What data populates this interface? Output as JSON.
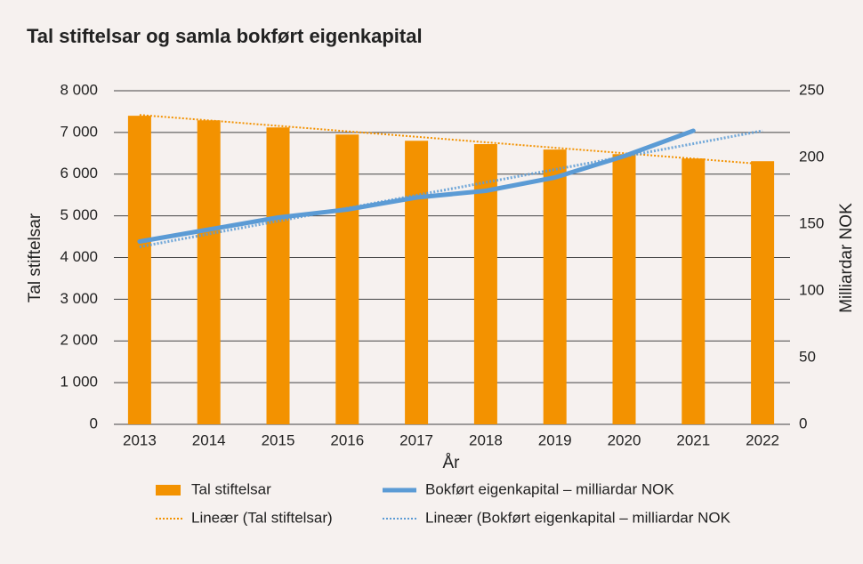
{
  "chart_data": {
    "type": "combo",
    "title": "Tal stiftelsar og samla bokført eigenkapital",
    "x_label": "År",
    "y_label": "Tal stiftelsar",
    "y2_label": "Milliardar NOK",
    "categories": [
      "2013",
      "2014",
      "2015",
      "2016",
      "2017",
      "2018",
      "2019",
      "2020",
      "2021",
      "2022"
    ],
    "ylim": [
      0,
      8000
    ],
    "yticks": [
      0,
      {
        "value": 1000,
        "label": "1 000"
      },
      {
        "value": 2000,
        "label": "2 000"
      },
      {
        "value": 3000,
        "label": "3 000"
      },
      {
        "value": 4000,
        "label": "4 000"
      },
      {
        "value": 5000,
        "label": "5 000"
      },
      {
        "value": 6000,
        "label": "6 000"
      },
      {
        "value": 7000,
        "label": "7 000"
      },
      {
        "value": 8000,
        "label": "8 000"
      }
    ],
    "y2lim": [
      0,
      250
    ],
    "y2ticks": [
      0,
      50,
      100,
      150,
      200,
      250
    ],
    "grid": true,
    "legend": "bottom",
    "series": [
      {
        "name": "Tal stiftelsar",
        "type": "bar",
        "color": "#f39200",
        "values": [
          7400,
          7290,
          7120,
          6950,
          6800,
          6720,
          6590,
          6480,
          6375,
          6310
        ]
      },
      {
        "name": "Bokført eigenkapital – milliardar NOK",
        "type": "line",
        "axis": "y2",
        "color": "#5b9bd5",
        "values": [
          137,
          146,
          155,
          161,
          170,
          175,
          185,
          201,
          220,
          null
        ]
      },
      {
        "name": "Lineær (Tal stiftelsar)",
        "type": "trend",
        "color": "#f39200",
        "values": [
          7420,
          7289,
          7158,
          7027,
          6896,
          6764,
          6633,
          6502,
          6371,
          6240
        ]
      },
      {
        "name": "Lineær (Bokført eigenkapital – milliardar NOK",
        "type": "trend",
        "axis": "y2",
        "color": "#5b9bd5",
        "values": [
          133,
          142.7,
          152.3,
          162,
          171.7,
          181.3,
          191,
          200.7,
          210.3,
          220
        ]
      }
    ]
  }
}
